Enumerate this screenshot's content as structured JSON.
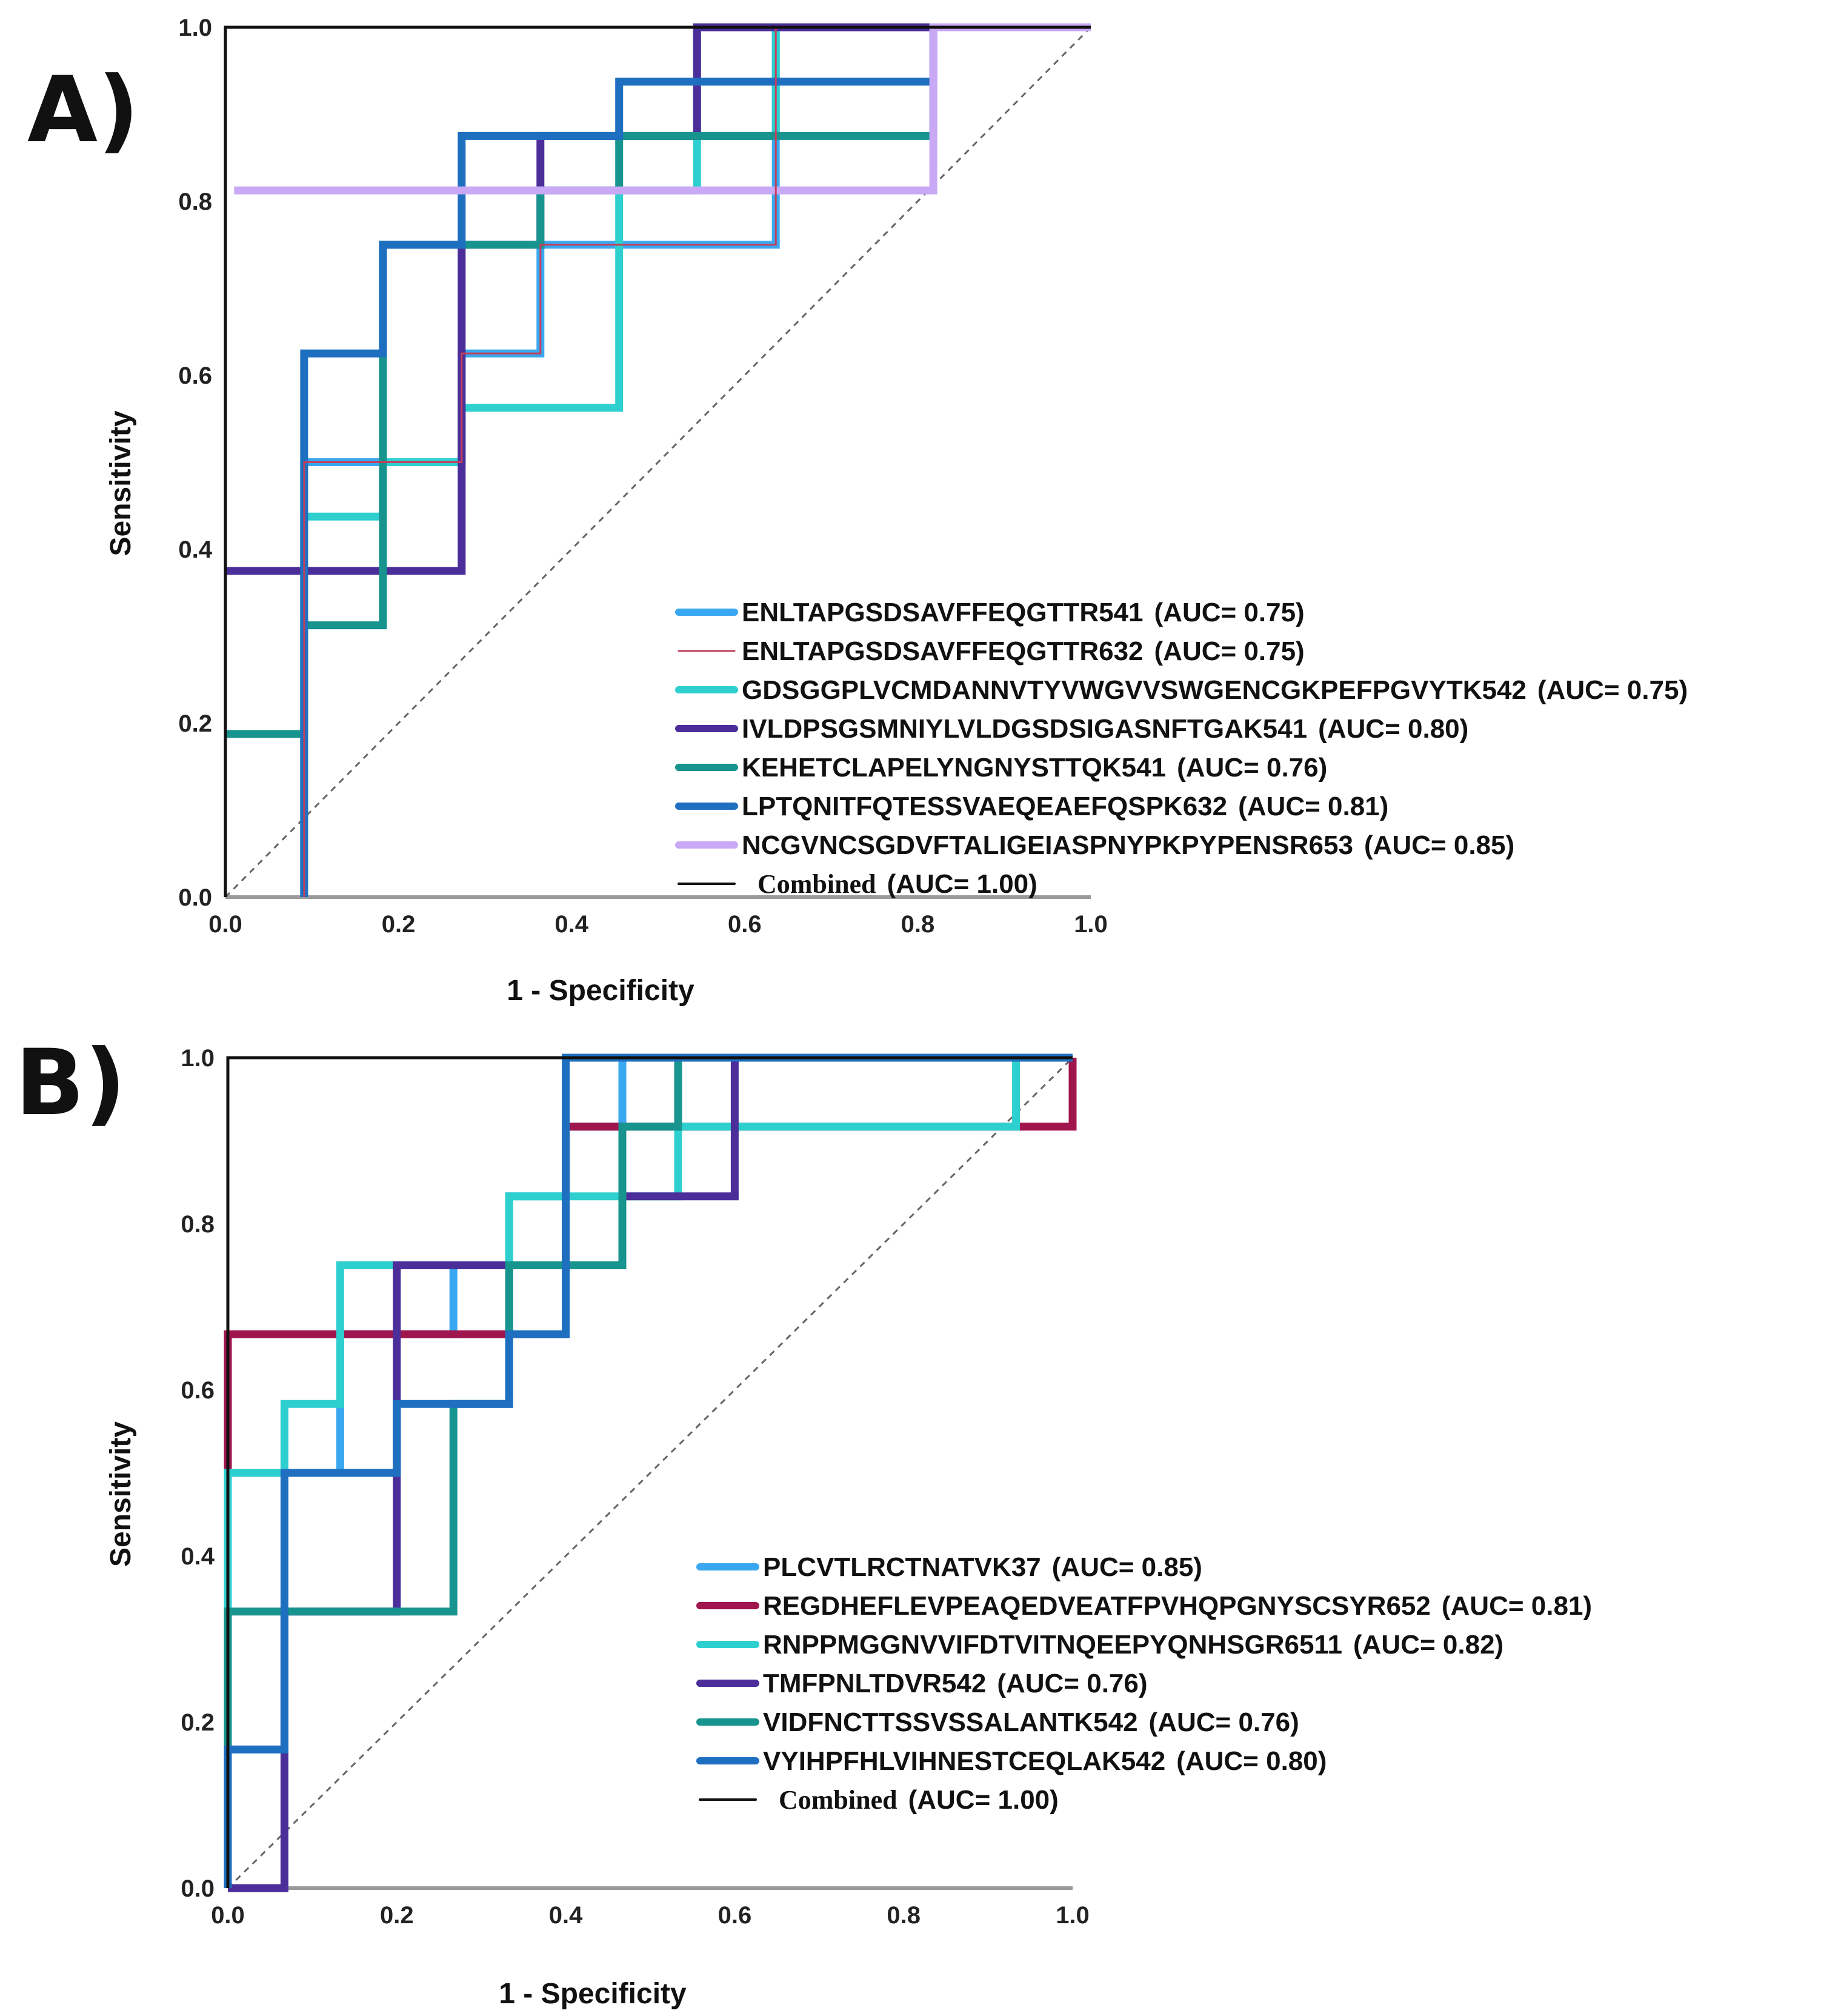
{
  "chart_data": [
    {
      "type": "line",
      "panel_label": "A)",
      "xlabel": "1 - Specificity",
      "ylabel": "Sensitivity",
      "xlim": [
        0,
        1
      ],
      "ylim": [
        0,
        1
      ],
      "x_ticks": [
        "0.0",
        "0.2",
        "0.4",
        "0.6",
        "0.8",
        "1.0"
      ],
      "y_ticks": [
        "0.0",
        "0.2",
        "0.4",
        "0.6",
        "0.8",
        "1.0"
      ],
      "grid": false,
      "legend_position": "bottom-right",
      "diagonal_reference": true,
      "series": [
        {
          "name": "ENLTAPGSDSAVFFEQGTTR541",
          "auc": "(AUC= 0.75)",
          "color": "#3AA8F0",
          "width": "thick",
          "points": [
            [
              0.091,
              0
            ],
            [
              0.091,
              0.5
            ],
            [
              0.273,
              0.5
            ],
            [
              0.273,
              0.625
            ],
            [
              0.364,
              0.625
            ],
            [
              0.364,
              0.75
            ],
            [
              0.636,
              0.75
            ],
            [
              0.636,
              1.0
            ],
            [
              1.0,
              1.0
            ]
          ]
        },
        {
          "name": "ENLTAPGSDSAVFFEQGTTR632",
          "auc": "(AUC= 0.75)",
          "color": "#C2405C",
          "width": "thin",
          "points": [
            [
              0.091,
              0
            ],
            [
              0.091,
              0.5
            ],
            [
              0.273,
              0.5
            ],
            [
              0.273,
              0.625
            ],
            [
              0.364,
              0.625
            ],
            [
              0.364,
              0.75
            ],
            [
              0.636,
              0.75
            ],
            [
              0.636,
              1.0
            ],
            [
              1.0,
              1.0
            ]
          ]
        },
        {
          "name": "GDSGGPLVCMDANNVTYVWGVVSWGENCGKPEFPGVYTK542",
          "auc": "(AUC= 0.75)",
          "color": "#2ECFCF",
          "width": "thick",
          "points": [
            [
              0.091,
              0
            ],
            [
              0.091,
              0.4375
            ],
            [
              0.182,
              0.4375
            ],
            [
              0.182,
              0.5
            ],
            [
              0.273,
              0.5
            ],
            [
              0.273,
              0.5625
            ],
            [
              0.455,
              0.5625
            ],
            [
              0.455,
              0.8125
            ],
            [
              0.545,
              0.8125
            ],
            [
              0.545,
              0.875
            ],
            [
              0.636,
              0.875
            ],
            [
              0.636,
              1.0
            ],
            [
              1.0,
              1.0
            ]
          ]
        },
        {
          "name": "IVLDPSGSMNIYLVLDGSDSIGASNFTGAK541",
          "auc": "(AUC= 0.80)",
          "color": "#4B2E9A",
          "width": "thick",
          "points": [
            [
              0,
              0.375
            ],
            [
              0.273,
              0.375
            ],
            [
              0.273,
              0.75
            ],
            [
              0.364,
              0.75
            ],
            [
              0.364,
              0.875
            ],
            [
              0.545,
              0.875
            ],
            [
              0.545,
              1.0
            ],
            [
              1.0,
              1.0
            ]
          ]
        },
        {
          "name": "KEHETCLAPELYNGNYSTTQK541",
          "auc": "(AUC= 0.76)",
          "color": "#17948E",
          "width": "thick",
          "points": [
            [
              0,
              0.1875
            ],
            [
              0.091,
              0.1875
            ],
            [
              0.091,
              0.3125
            ],
            [
              0.182,
              0.3125
            ],
            [
              0.182,
              0.75
            ],
            [
              0.364,
              0.75
            ],
            [
              0.364,
              0.8125
            ],
            [
              0.455,
              0.8125
            ],
            [
              0.455,
              0.875
            ],
            [
              0.818,
              0.875
            ],
            [
              0.818,
              1.0
            ],
            [
              1.0,
              1.0
            ]
          ]
        },
        {
          "name": "LPTQNITFQTESSVAEQEAEFQSPK632",
          "auc": "(AUC= 0.81)",
          "color": "#1E6FC0",
          "width": "thick",
          "points": [
            [
              0.091,
              0
            ],
            [
              0.091,
              0.625
            ],
            [
              0.182,
              0.625
            ],
            [
              0.182,
              0.75
            ],
            [
              0.273,
              0.75
            ],
            [
              0.273,
              0.875
            ],
            [
              0.455,
              0.875
            ],
            [
              0.455,
              0.9375
            ],
            [
              0.818,
              0.9375
            ],
            [
              0.818,
              1.0
            ],
            [
              1.0,
              1.0
            ]
          ]
        },
        {
          "name": "NCGVNCSGDVFTALIGEIASPNYPKPYPENSR653",
          "auc": "(AUC= 0.85)",
          "color": "#C9A8F5",
          "width": "thick",
          "points": [
            [
              0.01,
              0.8125
            ],
            [
              0.818,
              0.8125
            ],
            [
              0.818,
              1.0
            ],
            [
              1.0,
              1.0
            ]
          ]
        },
        {
          "name": "Combined",
          "auc": "(AUC= 1.00)",
          "color": "#111111",
          "width": "combined",
          "points": [
            [
              0,
              0
            ],
            [
              0,
              1.0
            ],
            [
              1.0,
              1.0
            ]
          ]
        }
      ]
    },
    {
      "type": "line",
      "panel_label": "B)",
      "xlabel": "1 - Specificity",
      "ylabel": "Sensitivity",
      "xlim": [
        0,
        1
      ],
      "ylim": [
        0,
        1
      ],
      "x_ticks": [
        "0.0",
        "0.2",
        "0.4",
        "0.6",
        "0.8",
        "1.0"
      ],
      "y_ticks": [
        "0.0",
        "0.2",
        "0.4",
        "0.6",
        "0.8",
        "1.0"
      ],
      "grid": false,
      "legend_position": "bottom-right",
      "diagonal_reference": true,
      "series": [
        {
          "name": "PLCVTLRCTNATVK37",
          "auc": "(AUC= 0.85)",
          "color": "#3AA8F0",
          "width": "thick",
          "points": [
            [
              0,
              0
            ],
            [
              0,
              0.5
            ],
            [
              0.133,
              0.5
            ],
            [
              0.133,
              0.667
            ],
            [
              0.267,
              0.667
            ],
            [
              0.267,
              0.75
            ],
            [
              0.333,
              0.75
            ],
            [
              0.333,
              0.833
            ],
            [
              0.4,
              0.833
            ],
            [
              0.4,
              0.917
            ],
            [
              0.467,
              0.917
            ],
            [
              0.467,
              1.0
            ],
            [
              1.0,
              1.0
            ]
          ]
        },
        {
          "name": "REGDHEFLEVPEAQEDVEATFPVHQPGNYSCSYR652",
          "auc": "(AUC= 0.81)",
          "color": "#A0154E",
          "width": "thick",
          "points": [
            [
              0,
              0.5
            ],
            [
              0,
              0.667
            ],
            [
              0.333,
              0.667
            ],
            [
              0.333,
              0.75
            ],
            [
              0.4,
              0.75
            ],
            [
              0.4,
              0.917
            ],
            [
              0.933,
              0.917
            ],
            [
              0.933,
              0.917
            ],
            [
              0.933,
              0.917
            ],
            [
              1.0,
              0.917
            ],
            [
              1.0,
              1.0
            ]
          ]
        },
        {
          "name": "RNPPMGGNVVIFDTVITNQEEPYQNHSGR6511",
          "auc": "(AUC= 0.82)",
          "color": "#2ECFCF",
          "width": "thick",
          "points": [
            [
              0,
              0
            ],
            [
              0,
              0.5
            ],
            [
              0.067,
              0.5
            ],
            [
              0.067,
              0.583
            ],
            [
              0.133,
              0.583
            ],
            [
              0.133,
              0.75
            ],
            [
              0.2,
              0.75
            ],
            [
              0.2,
              0.75
            ],
            [
              0.333,
              0.75
            ],
            [
              0.333,
              0.833
            ],
            [
              0.533,
              0.833
            ],
            [
              0.533,
              0.917
            ],
            [
              0.933,
              0.917
            ],
            [
              0.933,
              1.0
            ],
            [
              1.0,
              1.0
            ]
          ]
        },
        {
          "name": "TMFPNLTDVR542",
          "auc": "(AUC= 0.76)",
          "color": "#4B2E9A",
          "width": "thick",
          "points": [
            [
              0,
              0
            ],
            [
              0.067,
              0
            ],
            [
              0.067,
              0.333
            ],
            [
              0.2,
              0.333
            ],
            [
              0.2,
              0.75
            ],
            [
              0.333,
              0.75
            ],
            [
              0.333,
              0.75
            ],
            [
              0.4,
              0.75
            ],
            [
              0.4,
              0.75
            ],
            [
              0.467,
              0.75
            ],
            [
              0.467,
              0.833
            ],
            [
              0.6,
              0.833
            ],
            [
              0.6,
              1.0
            ],
            [
              1.0,
              1.0
            ]
          ]
        },
        {
          "name": "VIDFNCTTSSVSSALANTK542",
          "auc": "(AUC= 0.76)",
          "color": "#17948E",
          "width": "thick",
          "points": [
            [
              0,
              0
            ],
            [
              0,
              0.333
            ],
            [
              0.267,
              0.333
            ],
            [
              0.267,
              0.583
            ],
            [
              0.333,
              0.583
            ],
            [
              0.333,
              0.75
            ],
            [
              0.467,
              0.75
            ],
            [
              0.467,
              0.917
            ],
            [
              0.533,
              0.917
            ],
            [
              0.533,
              1.0
            ],
            [
              1.0,
              1.0
            ]
          ]
        },
        {
          "name": "VYIHPFHLVIHNESTCEQLAK542",
          "auc": "(AUC= 0.80)",
          "color": "#1E6FC0",
          "width": "thick",
          "points": [
            [
              0,
              0
            ],
            [
              0,
              0.167
            ],
            [
              0.067,
              0.167
            ],
            [
              0.067,
              0.5
            ],
            [
              0.2,
              0.5
            ],
            [
              0.2,
              0.583
            ],
            [
              0.333,
              0.583
            ],
            [
              0.333,
              0.667
            ],
            [
              0.4,
              0.667
            ],
            [
              0.4,
              1.0
            ],
            [
              1.0,
              1.0
            ]
          ]
        },
        {
          "name": "Combined",
          "auc": "(AUC= 1.00)",
          "color": "#111111",
          "width": "combined",
          "points": [
            [
              0,
              0
            ],
            [
              0,
              1.0
            ],
            [
              1.0,
              1.0
            ]
          ]
        }
      ]
    }
  ]
}
